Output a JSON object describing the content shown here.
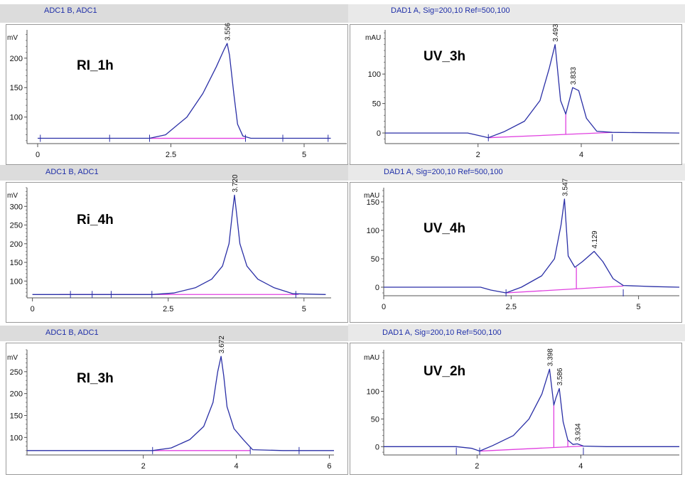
{
  "colors": {
    "trace": "#2a2fa6",
    "baseline": "#e040e0",
    "axis": "#555555",
    "title": "#1f2fa8",
    "label": "#111111"
  },
  "chart_data": [
    {
      "type": "line",
      "title": "ADC1 B, ADC1",
      "label": "RI_1h",
      "yunit": "mV",
      "xlim": [
        -0.2,
        5.8
      ],
      "ylim": [
        55,
        248
      ],
      "xticks": [
        0,
        2.5,
        5
      ],
      "xtick_labels": [
        "0",
        "2.5",
        "5"
      ],
      "yticks": [
        100,
        150,
        200
      ],
      "peak_labels": [
        {
          "x": 3.556,
          "y": 225,
          "text": "3.556"
        }
      ],
      "series": [
        {
          "x": [
            0,
            1.0,
            2.1,
            2.4,
            2.8,
            3.1,
            3.35,
            3.5,
            3.556,
            3.6,
            3.68,
            3.75,
            3.85,
            4.0,
            5.5
          ],
          "y": [
            64,
            64,
            64,
            70,
            100,
            140,
            185,
            215,
            225,
            205,
            140,
            88,
            68,
            64,
            64
          ]
        }
      ],
      "baseline": {
        "x": [
          2.1,
          3.9
        ],
        "y": [
          64,
          64
        ]
      },
      "markers_x": [
        0.05,
        1.35,
        2.1,
        3.9,
        4.6,
        5.45
      ]
    },
    {
      "type": "line",
      "title": "DAD1 A, Sig=200,10 Ref=500,100",
      "label": "UV_3h",
      "yunit": "mAU",
      "xlim": [
        0.2,
        5.9
      ],
      "ylim": [
        -18,
        175
      ],
      "xticks": [
        2,
        4
      ],
      "xtick_labels": [
        "2",
        "4"
      ],
      "yticks": [
        0,
        50,
        100
      ],
      "peak_labels": [
        {
          "x": 3.493,
          "y": 150,
          "text": "3.493"
        },
        {
          "x": 3.833,
          "y": 77,
          "text": "3.833"
        }
      ],
      "series": [
        {
          "x": [
            0.2,
            1.8,
            2.0,
            2.2,
            2.5,
            2.9,
            3.2,
            3.38,
            3.493,
            3.6,
            3.7,
            3.833,
            3.95,
            4.1,
            4.3,
            4.6,
            5.9
          ],
          "y": [
            0,
            0,
            -4,
            -8,
            2,
            20,
            55,
            110,
            150,
            55,
            32,
            77,
            72,
            25,
            3,
            1,
            0
          ]
        }
      ],
      "baseline": {
        "x": [
          2.2,
          4.6
        ],
        "y": [
          -8,
          1
        ]
      },
      "drops": [
        {
          "x": 3.7,
          "y": 32
        }
      ],
      "markers_x": [
        2.2,
        4.6
      ]
    },
    {
      "type": "line",
      "title": "ADC1 B, ADC1",
      "label": "Ri_4h",
      "yunit": "mV",
      "xlim": [
        -0.1,
        5.5
      ],
      "ylim": [
        55,
        350
      ],
      "xticks": [
        0,
        2.5,
        5
      ],
      "xtick_labels": [
        "0",
        "2.5",
        "5"
      ],
      "yticks": [
        100,
        150,
        200,
        250,
        300
      ],
      "peak_labels": [
        {
          "x": 3.72,
          "y": 330,
          "text": "3.720"
        }
      ],
      "series": [
        {
          "x": [
            0,
            1.0,
            2.2,
            2.6,
            3.0,
            3.3,
            3.5,
            3.62,
            3.68,
            3.72,
            3.76,
            3.82,
            3.95,
            4.15,
            4.45,
            4.8,
            5.4
          ],
          "y": [
            64,
            64,
            64,
            68,
            82,
            105,
            140,
            200,
            280,
            330,
            280,
            200,
            140,
            105,
            82,
            66,
            64
          ]
        }
      ],
      "baseline": {
        "x": [
          0.5,
          4.9
        ],
        "y": [
          64,
          64
        ]
      },
      "markers_x": [
        0.7,
        1.1,
        1.45,
        2.2,
        4.85
      ]
    },
    {
      "type": "line",
      "title": "DAD1 A, Sig=200,10 Ref=500,100",
      "label": "UV_4h",
      "yunit": "mAU",
      "xlim": [
        0,
        5.8
      ],
      "ylim": [
        -15,
        175
      ],
      "xticks": [
        0,
        2.5,
        5
      ],
      "xtick_labels": [
        "0",
        "2.5",
        "5"
      ],
      "yticks": [
        0,
        50,
        100,
        150
      ],
      "peak_labels": [
        {
          "x": 3.547,
          "y": 155,
          "text": "3.547"
        },
        {
          "x": 4.129,
          "y": 63,
          "text": "4.129"
        }
      ],
      "series": [
        {
          "x": [
            0,
            1.9,
            2.1,
            2.4,
            2.7,
            3.1,
            3.35,
            3.48,
            3.547,
            3.62,
            3.75,
            3.9,
            4.129,
            4.3,
            4.5,
            4.7,
            5.0,
            5.3,
            5.8
          ],
          "y": [
            0,
            0,
            -5,
            -10,
            0,
            20,
            50,
            110,
            155,
            55,
            35,
            45,
            63,
            45,
            15,
            3,
            2,
            1,
            0
          ]
        }
      ],
      "baseline": {
        "x": [
          2.4,
          4.7
        ],
        "y": [
          -10,
          2
        ]
      },
      "drops": [
        {
          "x": 3.78,
          "y": 35
        }
      ],
      "markers_x": [
        2.4,
        4.7
      ]
    },
    {
      "type": "line",
      "title": "ADC1 B, ADC1",
      "label": "RI_3h",
      "yunit": "mV",
      "xlim": [
        -0.5,
        6.1
      ],
      "ylim": [
        60,
        300
      ],
      "xticks": [
        2,
        4,
        6
      ],
      "xtick_labels": [
        "2",
        "4",
        "6"
      ],
      "yticks": [
        100,
        150,
        200,
        250
      ],
      "peak_labels": [
        {
          "x": 3.672,
          "y": 285,
          "text": "3.672"
        }
      ],
      "series": [
        {
          "x": [
            -0.5,
            1.0,
            2.2,
            2.6,
            3.0,
            3.3,
            3.5,
            3.6,
            3.672,
            3.73,
            3.8,
            3.95,
            4.15,
            4.35,
            5.0,
            6.1
          ],
          "y": [
            70,
            70,
            70,
            76,
            95,
            125,
            180,
            250,
            285,
            240,
            170,
            120,
            95,
            72,
            70,
            70
          ]
        }
      ],
      "baseline": {
        "x": [
          2.2,
          4.3
        ],
        "y": [
          70,
          70
        ]
      },
      "markers_x": [
        2.2,
        4.3,
        5.35
      ]
    },
    {
      "type": "line",
      "title": "DAD1 A, Sig=200,10 Ref=500,100",
      "label": "UV_2h",
      "yunit": "mAU",
      "xlim": [
        0.2,
        5.9
      ],
      "ylim": [
        -15,
        175
      ],
      "xticks": [
        2,
        4
      ],
      "xtick_labels": [
        "2",
        "4"
      ],
      "yticks": [
        0,
        50,
        100
      ],
      "peak_labels": [
        {
          "x": 3.398,
          "y": 140,
          "text": "3.398"
        },
        {
          "x": 3.586,
          "y": 105,
          "text": "3.586"
        },
        {
          "x": 3.934,
          "y": 5,
          "text": "3.934"
        }
      ],
      "series": [
        {
          "x": [
            0.2,
            1.6,
            1.9,
            2.05,
            2.3,
            2.7,
            3.0,
            3.25,
            3.398,
            3.48,
            3.52,
            3.586,
            3.66,
            3.75,
            3.85,
            3.934,
            4.05,
            4.5,
            5.9
          ],
          "y": [
            0,
            0,
            -3,
            -8,
            2,
            20,
            50,
            95,
            140,
            75,
            88,
            105,
            45,
            12,
            4,
            5,
            1,
            0,
            0
          ]
        }
      ],
      "baseline": {
        "x": [
          2.05,
          4.05
        ],
        "y": [
          -8,
          1
        ]
      },
      "drops": [
        {
          "x": 3.48,
          "y": 75
        },
        {
          "x": 3.75,
          "y": 12
        }
      ],
      "markers_x": [
        1.6,
        2.05,
        4.05
      ]
    }
  ]
}
